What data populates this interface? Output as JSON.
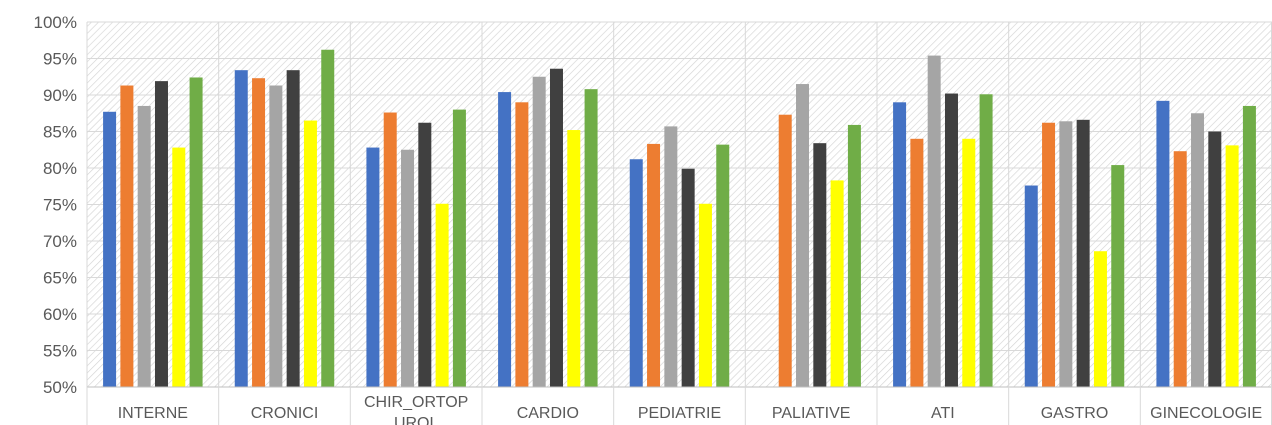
{
  "chart_data": {
    "type": "bar",
    "categories": [
      "INTERNE",
      "CRONICI",
      "CHIR_ORTOP UROL",
      "CARDIO",
      "PEDIATRIE",
      "PALIATIVE",
      "ATI",
      "GASTRO",
      "GINECOLOGIE"
    ],
    "series": [
      {
        "color": "#4472C4",
        "values": [
          87.7,
          93.4,
          82.8,
          90.4,
          81.2,
          null,
          89.0,
          77.6,
          89.2
        ]
      },
      {
        "color": "#ED7D31",
        "values": [
          91.3,
          92.3,
          87.6,
          89.0,
          83.3,
          87.3,
          84.0,
          86.2,
          82.3
        ]
      },
      {
        "color": "#A5A5A5",
        "values": [
          88.5,
          91.3,
          82.5,
          92.5,
          85.7,
          91.5,
          95.4,
          86.4,
          87.5
        ]
      },
      {
        "color": "#404040",
        "values": [
          91.9,
          93.4,
          86.2,
          93.6,
          79.9,
          83.4,
          90.2,
          86.6,
          85.0
        ]
      },
      {
        "color": "#FFFF00",
        "values": [
          82.8,
          86.5,
          75.1,
          85.2,
          75.1,
          78.3,
          84.0,
          68.6,
          83.1
        ]
      },
      {
        "color": "#70AD47",
        "values": [
          92.4,
          96.2,
          88.0,
          90.8,
          83.2,
          85.9,
          90.1,
          80.4,
          88.5
        ]
      }
    ],
    "y_ticks": [
      "50%",
      "55%",
      "60%",
      "65%",
      "70%",
      "75%",
      "80%",
      "85%",
      "90%",
      "95%",
      "100%"
    ],
    "ylim": [
      50,
      100
    ],
    "title": "",
    "xlabel": "",
    "ylabel": "",
    "grid": true,
    "plot_background": "diagonal-hatch"
  }
}
